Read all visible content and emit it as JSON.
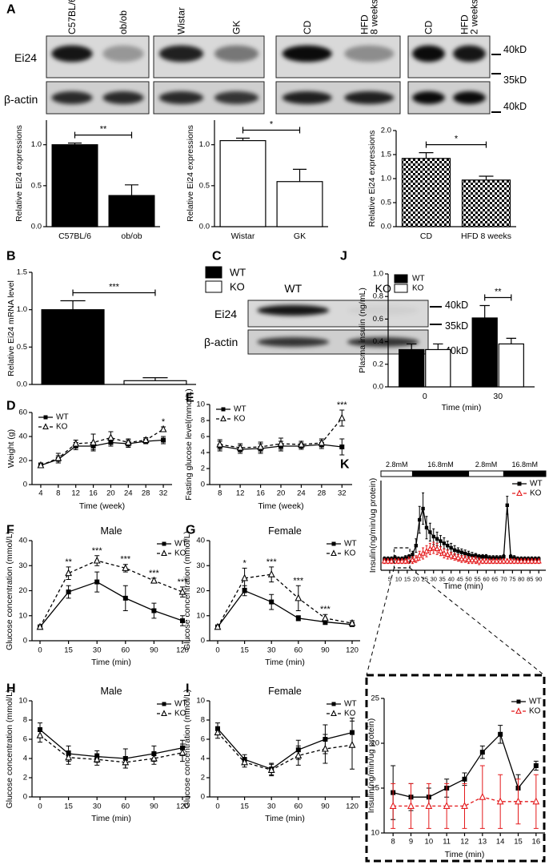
{
  "blots_A": {
    "panel": "A",
    "rows": [
      "Ei24",
      "β-actin"
    ],
    "lanes": [
      [
        "C57BL/6",
        "ob/ob"
      ],
      [
        "Wistar",
        "GK"
      ],
      [
        "CD",
        [
          "HFD",
          "8 weeks"
        ]
      ],
      [
        "CD",
        [
          "HFD",
          "2 weeks"
        ]
      ]
    ],
    "markers": [
      "40kD",
      "35kD",
      "40kD"
    ]
  },
  "blot_C": {
    "panel": "C",
    "rows": [
      "Ei24",
      "β-actin"
    ],
    "lanes": [
      "WT",
      "KO"
    ],
    "markers": [
      "40kD",
      "35kD",
      "40kD"
    ]
  },
  "chart_data": [
    {
      "type": "bar",
      "categories": [
        "C57BL/6",
        "ob/ob"
      ],
      "values": [
        1.0,
        0.38
      ],
      "errors": [
        0.02,
        0.13
      ],
      "color": "#000000",
      "ylim": [
        0,
        1.3
      ],
      "yticks": [
        {
          "value": 0,
          "label": "0.0"
        },
        0.5,
        {
          "value": 1,
          "label": "1.0"
        }
      ],
      "ylabel": "Relative Ei24 expressions",
      "significance": "**"
    },
    {
      "type": "bar",
      "categories": [
        "Wistar",
        "GK"
      ],
      "values": [
        1.05,
        0.55
      ],
      "errors": [
        0.03,
        0.15
      ],
      "color": "#ffffff",
      "ylim": [
        0,
        1.3
      ],
      "yticks": [
        {
          "value": 0,
          "label": "0.0"
        },
        0.5,
        {
          "value": 1,
          "label": "1.0"
        }
      ],
      "ylabel": "Relative Ei24 expressions",
      "significance": "*"
    },
    {
      "type": "bar",
      "categories": [
        "CD",
        "HFD 8 weeks"
      ],
      "values": [
        1.42,
        0.97
      ],
      "errors": [
        0.12,
        0.08
      ],
      "color": "#ffffff",
      "pattern": "checker",
      "ylim": [
        0,
        2.0
      ],
      "yticks": [
        {
          "value": 0,
          "label": "0.0"
        },
        0.5,
        {
          "value": 1,
          "label": "1.0"
        },
        1.5,
        {
          "value": 2,
          "label": "2.0"
        }
      ],
      "ylabel": "Relative Ei24 expressions",
      "significance": "*"
    },
    {
      "type": "bar",
      "panel": "B",
      "categories": [
        null
      ],
      "series": [
        {
          "name": "WT",
          "color": "#000000",
          "values": [
            1.0
          ],
          "errors": [
            0.12
          ]
        },
        {
          "name": "KO",
          "color": "#ffffff",
          "values": [
            0.05
          ],
          "errors": [
            0.04
          ]
        }
      ],
      "ylim": [
        0,
        1.5
      ],
      "yticks": [
        {
          "value": 0,
          "label": "0.0"
        },
        0.5,
        {
          "value": 1,
          "label": "1.0"
        },
        1.5
      ],
      "ylabel": "Relative Ei24 mRNA level",
      "significance": [
        "***"
      ],
      "legend": "outside right"
    },
    {
      "type": "bar",
      "panel": "J",
      "categories": [
        "0",
        "30"
      ],
      "series": [
        {
          "name": "WT",
          "color": "#000000",
          "values": [
            0.33,
            0.61
          ],
          "errors": [
            0.05,
            0.11
          ]
        },
        {
          "name": "KO",
          "color": "#ffffff",
          "values": [
            0.33,
            0.38
          ],
          "errors": [
            0.05,
            0.05
          ]
        }
      ],
      "ylim": [
        0,
        1.0
      ],
      "yticks": [
        {
          "value": 0,
          "label": "0.0"
        },
        0.2,
        0.4,
        0.6,
        0.8,
        {
          "value": 1,
          "label": "1.0"
        }
      ],
      "ylabel": "Plasma insulin (ng/mL)",
      "xlabel": "Time (min)",
      "significance": [
        null,
        "**"
      ],
      "legend": "upper left"
    },
    {
      "type": "line",
      "panel": "D",
      "x": [
        4,
        8,
        12,
        16,
        20,
        24,
        28,
        32
      ],
      "xlim": [
        2,
        34
      ],
      "xticks": [
        4,
        8,
        12,
        16,
        20,
        24,
        28,
        32
      ],
      "series": [
        {
          "name": "WT",
          "color": "#000000",
          "marker": "square",
          "dash": false,
          "values": [
            16,
            21,
            32,
            32,
            35,
            34,
            36,
            37
          ],
          "errors": [
            2,
            3,
            3,
            3,
            3,
            3,
            2,
            3
          ]
        },
        {
          "name": "KO",
          "color": "#000000",
          "marker": "triangle",
          "dash": true,
          "values": [
            16,
            22,
            34,
            35,
            39,
            35,
            37,
            46
          ],
          "errors": [
            2,
            4,
            3,
            7,
            5,
            3,
            2,
            2
          ]
        }
      ],
      "ylim": [
        0,
        60
      ],
      "yticks": [
        0,
        20,
        40,
        60
      ],
      "xlabel": "Time (week)",
      "ylabel": "Weight (g)",
      "significance": [
        null,
        null,
        null,
        null,
        null,
        null,
        null,
        "*"
      ],
      "legend": "upper left"
    },
    {
      "type": "line",
      "panel": "E",
      "x": [
        8,
        12,
        16,
        20,
        24,
        28,
        32
      ],
      "xlim": [
        6,
        34
      ],
      "xticks": [
        8,
        12,
        16,
        20,
        24,
        28,
        32
      ],
      "series": [
        {
          "name": "WT",
          "color": "#000000",
          "marker": "square",
          "dash": false,
          "values": [
            4.8,
            4.4,
            4.5,
            4.8,
            4.8,
            5.0,
            4.7
          ],
          "errors": [
            0.6,
            0.5,
            0.6,
            0.6,
            0.4,
            0.5,
            1.0
          ]
        },
        {
          "name": "KO",
          "color": "#000000",
          "marker": "triangle",
          "dash": true,
          "values": [
            5.0,
            4.6,
            4.7,
            5.1,
            5.0,
            5.2,
            8.3
          ],
          "errors": [
            0.6,
            0.5,
            0.6,
            0.7,
            0.4,
            0.5,
            1.0
          ]
        }
      ],
      "ylim": [
        0,
        10
      ],
      "yticks": [
        0,
        2,
        4,
        6,
        8,
        10
      ],
      "xlabel": "Time (week)",
      "ylabel": "Fasting glucose level(mmol/L)",
      "significance": [
        null,
        null,
        null,
        null,
        null,
        null,
        "***"
      ],
      "legend": "upper left"
    },
    {
      "type": "line",
      "panel": "F",
      "title": "Male",
      "categories": [
        "0",
        "15",
        "30",
        "60",
        "90",
        "120"
      ],
      "series": [
        {
          "name": "WT",
          "color": "#000000",
          "marker": "square",
          "dash": false,
          "values": [
            5.5,
            19.5,
            23.5,
            17,
            12,
            8
          ],
          "errors": [
            0.8,
            2.5,
            4,
            5,
            3,
            2
          ]
        },
        {
          "name": "KO",
          "color": "#000000",
          "marker": "triangle",
          "dash": true,
          "values": [
            5.5,
            27,
            32,
            29,
            24,
            19.5
          ],
          "errors": [
            0.8,
            2.5,
            2,
            1.5,
            1,
            2
          ]
        }
      ],
      "ylim": [
        0,
        40
      ],
      "yticks": [
        0,
        10,
        20,
        30,
        40
      ],
      "xlabel": "Time (min)",
      "ylabel": "Glucose concentration (mmol/L)",
      "significance": [
        null,
        "**",
        "***",
        "***",
        "***",
        "***"
      ],
      "legend": "upper right"
    },
    {
      "type": "line",
      "panel": "G",
      "title": "Female",
      "categories": [
        "0",
        "15",
        "30",
        "60",
        "90",
        "120"
      ],
      "series": [
        {
          "name": "WT",
          "color": "#000000",
          "marker": "square",
          "dash": false,
          "values": [
            5.5,
            20,
            15.5,
            9,
            7.5,
            6.5
          ],
          "errors": [
            0.8,
            2,
            3,
            1,
            1,
            0.8
          ]
        },
        {
          "name": "KO",
          "color": "#000000",
          "marker": "triangle",
          "dash": true,
          "values": [
            5.5,
            25,
            26.5,
            17,
            9,
            7
          ],
          "errors": [
            0.8,
            4,
            3,
            5,
            1.5,
            1
          ]
        }
      ],
      "ylim": [
        0,
        40
      ],
      "yticks": [
        0,
        10,
        20,
        30,
        40
      ],
      "xlabel": "Time (min)",
      "ylabel": "Glucose concentration (mmol/L)",
      "significance": [
        null,
        "*",
        "***",
        "***",
        "***",
        null
      ],
      "legend": "upper right"
    },
    {
      "type": "line",
      "panel": "K",
      "x": [
        2,
        4,
        6,
        8,
        10,
        12,
        14,
        16,
        18,
        20,
        22,
        24,
        26,
        28,
        30,
        32,
        34,
        36,
        38,
        40,
        42,
        44,
        46,
        48,
        50,
        52,
        54,
        56,
        58,
        60,
        62,
        64,
        66,
        68,
        70,
        72,
        74,
        76,
        78,
        80,
        82,
        84,
        86,
        88,
        90
      ],
      "xlim": [
        0,
        94
      ],
      "xticks": [
        5,
        10,
        15,
        20,
        25,
        30,
        35,
        40,
        45,
        50,
        55,
        60,
        65,
        70,
        75,
        80,
        85,
        90
      ],
      "stimulus": [
        {
          "label": "2.8mM",
          "from": 0,
          "to": 18,
          "color": "#ffffff"
        },
        {
          "label": "16.8mM",
          "from": 18,
          "to": 50,
          "color": "#000000"
        },
        {
          "label": "2.8mM",
          "from": 50,
          "to": 70,
          "color": "#ffffff"
        },
        {
          "label": "16.8mM",
          "from": 70,
          "to": 94,
          "color": "#000000"
        }
      ],
      "series": [
        {
          "name": "WT",
          "color": "#000000",
          "marker": "square",
          "dash": false,
          "values": [
            10,
            10,
            10,
            11,
            10,
            10,
            11,
            12,
            14,
            22,
            45,
            55,
            38,
            34,
            30,
            28,
            26,
            24,
            22,
            20,
            18,
            17,
            16,
            15,
            14,
            13,
            13,
            12,
            12,
            12,
            11,
            11,
            11,
            11,
            12,
            58,
            12,
            11,
            10,
            10,
            10,
            10,
            10,
            10,
            10
          ],
          "errors": [
            2,
            2,
            2,
            2,
            2,
            2,
            2,
            2,
            3,
            6,
            12,
            14,
            10,
            8,
            7,
            6,
            5,
            5,
            4,
            4,
            4,
            3,
            3,
            3,
            3,
            3,
            2,
            2,
            2,
            2,
            2,
            2,
            2,
            2,
            2,
            8,
            2,
            2,
            2,
            2,
            2,
            2,
            2,
            2,
            2
          ]
        },
        {
          "name": "KO",
          "color": "#e41a1c",
          "marker": "triangle",
          "dash": true,
          "values": [
            8,
            8,
            8,
            8,
            8,
            8,
            8,
            9,
            9,
            10,
            13,
            15,
            17,
            19,
            20,
            19,
            17,
            15,
            14,
            13,
            12,
            11,
            10,
            10,
            9,
            9,
            9,
            8,
            8,
            8,
            8,
            8,
            8,
            8,
            8,
            8,
            8,
            8,
            8,
            8,
            8,
            8,
            8,
            8,
            8
          ],
          "errors": [
            2,
            2,
            2,
            2,
            2,
            2,
            2,
            3,
            3,
            3,
            4,
            5,
            5,
            5,
            5,
            5,
            4,
            4,
            4,
            3,
            3,
            3,
            3,
            3,
            3,
            3,
            3,
            3,
            2,
            2,
            2,
            2,
            2,
            2,
            2,
            2,
            2,
            2,
            2,
            2,
            2,
            2,
            2,
            2,
            2
          ]
        }
      ],
      "ylim": [
        0,
        80
      ],
      "xlabel": "Time (min)",
      "ylabel": "Insulin(ng/min/ug protein)",
      "legend": "upper right"
    },
    {
      "type": "line",
      "panel": "H",
      "title": "Male",
      "categories": [
        "0",
        "15",
        "30",
        "60",
        "90",
        "120"
      ],
      "series": [
        {
          "name": "WT",
          "color": "#000000",
          "marker": "square",
          "dash": false,
          "values": [
            7.0,
            4.5,
            4.2,
            4.0,
            4.5,
            5.1
          ],
          "errors": [
            0.7,
            0.8,
            0.6,
            1,
            0.8,
            0.8
          ]
        },
        {
          "name": "KO",
          "color": "#000000",
          "marker": "triangle",
          "dash": true,
          "values": [
            6.4,
            4.1,
            3.9,
            3.6,
            4.0,
            4.6
          ],
          "errors": [
            0.7,
            0.7,
            0.6,
            0.6,
            0.6,
            0.9
          ]
        }
      ],
      "ylim": [
        0,
        10
      ],
      "yticks": [
        0,
        2,
        4,
        6,
        8,
        10
      ],
      "xlabel": "Time (min)",
      "ylabel": "Glucose concentration (mmol/L)",
      "legend": "upper right"
    },
    {
      "type": "line",
      "panel": "I",
      "title": "Female",
      "categories": [
        "0",
        "15",
        "30",
        "60",
        "90",
        "120"
      ],
      "series": [
        {
          "name": "WT",
          "color": "#000000",
          "marker": "square",
          "dash": false,
          "values": [
            7.1,
            3.9,
            2.9,
            4.9,
            6.0,
            6.7
          ],
          "errors": [
            0.6,
            0.5,
            0.6,
            1,
            1.5,
            1.5
          ]
        },
        {
          "name": "KO",
          "color": "#000000",
          "marker": "triangle",
          "dash": true,
          "values": [
            6.7,
            3.6,
            2.8,
            4.3,
            5.0,
            5.4
          ],
          "errors": [
            0.6,
            0.5,
            0.6,
            1,
            1.5,
            2.5
          ]
        }
      ],
      "ylim": [
        0,
        10
      ],
      "yticks": [
        0,
        2,
        4,
        6,
        8,
        10
      ],
      "xlabel": "Time (min)",
      "ylabel": "Glucose concentration (mmol/L)",
      "legend": "upper right"
    },
    {
      "type": "line",
      "x": [
        8,
        9,
        10,
        11,
        12,
        13,
        14,
        15,
        16
      ],
      "xlim": [
        7.5,
        16.5
      ],
      "xticks": [
        8,
        9,
        10,
        11,
        12,
        13,
        14,
        15,
        16
      ],
      "series": [
        {
          "name": "WT",
          "color": "#000000",
          "marker": "square",
          "dash": false,
          "values": [
            14.5,
            14,
            14,
            15,
            16,
            19,
            21,
            15,
            17.5
          ],
          "errors": [
            3,
            1.5,
            1,
            1,
            0.7,
            0.7,
            1,
            1.5,
            0.5
          ]
        },
        {
          "name": "KO",
          "color": "#e41a1c",
          "marker": "triangle",
          "dash": true,
          "values": [
            13,
            13,
            13,
            13,
            13,
            14,
            13.5,
            13.5,
            13.5
          ],
          "errors": [
            2.5,
            2.5,
            2.5,
            2.5,
            2.5,
            3.5,
            3,
            2.5,
            3
          ]
        }
      ],
      "ylim": [
        10,
        25
      ],
      "yticks": [
        10,
        15,
        20,
        25
      ],
      "xlabel": "Time (min)",
      "ylabel": "Insulin(ng/min/ug protein)",
      "legend": "upper right"
    }
  ]
}
